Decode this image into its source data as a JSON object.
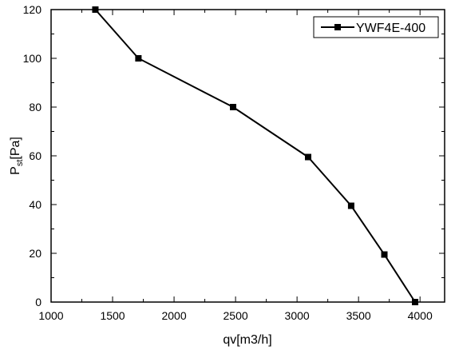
{
  "chart_data": {
    "type": "line",
    "title": "",
    "xlabel": "qv[m3/h]",
    "ylabel": {
      "main": "P",
      "sub": "st",
      "unit": "[Pa]"
    },
    "xlim": [
      1000,
      4200
    ],
    "ylim": [
      0,
      120
    ],
    "xticks": [
      1000,
      1500,
      2000,
      2500,
      3000,
      3500,
      4000
    ],
    "yticks": [
      0,
      20,
      40,
      60,
      80,
      100,
      120
    ],
    "grid": false,
    "legend_position": "top-right",
    "series": [
      {
        "name": "YWF4E-400",
        "color": "#000000",
        "marker": "square",
        "x": [
          1360,
          1710,
          2480,
          3090,
          3440,
          3710,
          3960
        ],
        "y": [
          120,
          100,
          80,
          59.5,
          39.5,
          19.5,
          0
        ]
      }
    ]
  }
}
